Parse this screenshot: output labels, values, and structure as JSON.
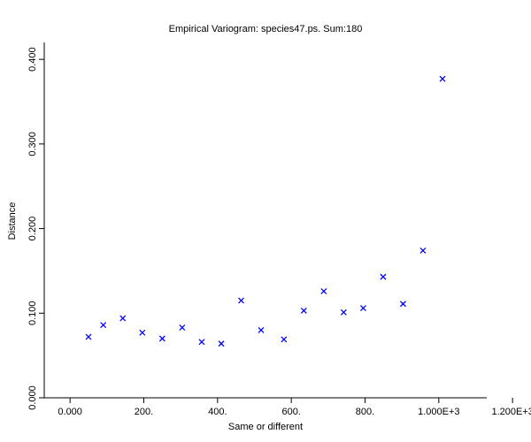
{
  "chart_data": {
    "type": "scatter",
    "title": "Empirical Variogram: species47.ps. Sum:180",
    "xlabel": "Same or different",
    "ylabel": "Distance",
    "xlim": [
      -70,
      1130
    ],
    "ylim": [
      0,
      0.42
    ],
    "x_ticks": [
      {
        "value": 0,
        "label": "0.000"
      },
      {
        "value": 200,
        "label": "200."
      },
      {
        "value": 400,
        "label": "400."
      },
      {
        "value": 600,
        "label": "600."
      },
      {
        "value": 800,
        "label": "800."
      },
      {
        "value": 1000,
        "label": "1.000E+3"
      },
      {
        "value": 1200,
        "label": "1.200E+3"
      }
    ],
    "y_ticks": [
      {
        "value": 0.0,
        "label": "0.000"
      },
      {
        "value": 0.1,
        "label": "0.100"
      },
      {
        "value": 0.2,
        "label": "0.200"
      },
      {
        "value": 0.3,
        "label": "0.300"
      },
      {
        "value": 0.4,
        "label": "0.400"
      }
    ],
    "marker": "x",
    "marker_color": "#0000ff",
    "grid": false,
    "series": [
      {
        "x": [
          50,
          90,
          143,
          196,
          250,
          304,
          357,
          410,
          464,
          518,
          580,
          634,
          688,
          742,
          795,
          849,
          903,
          957,
          1010
        ],
        "y": [
          0.072,
          0.086,
          0.094,
          0.077,
          0.07,
          0.083,
          0.066,
          0.064,
          0.115,
          0.08,
          0.069,
          0.103,
          0.126,
          0.101,
          0.106,
          0.143,
          0.111,
          0.174,
          0.377
        ]
      }
    ]
  }
}
